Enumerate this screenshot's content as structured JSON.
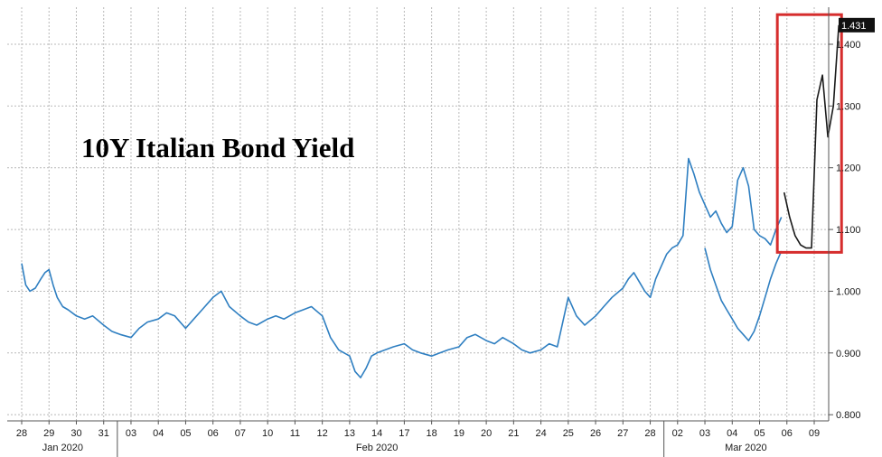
{
  "chart_data": {
    "type": "line",
    "title": "10Y Italian Bond Yield",
    "y_ticks": [
      "0.800",
      "0.900",
      "1.000",
      "1.100",
      "1.200",
      "1.300",
      "1.400"
    ],
    "ylim": [
      0.79,
      1.46
    ],
    "x_day_labels": [
      "28",
      "29",
      "30",
      "31",
      "03",
      "04",
      "05",
      "06",
      "07",
      "10",
      "11",
      "12",
      "13",
      "14",
      "17",
      "18",
      "19",
      "20",
      "21",
      "24",
      "25",
      "26",
      "27",
      "28",
      "02",
      "03",
      "04",
      "05",
      "06",
      "09"
    ],
    "month_labels": [
      {
        "label": "Jan 2020",
        "day_index": 1.5
      },
      {
        "label": "Feb 2020",
        "day_index": 13
      },
      {
        "label": "Mar 2020",
        "day_index": 26.5
      }
    ],
    "month_separators_after": [
      3,
      23
    ],
    "last_value": "1.431",
    "colors": {
      "series": "#2f7fc1",
      "highlight_series": "#1a1a1a",
      "highlight_box": "#d62d2d",
      "last_value_bg": "#111111",
      "grid": "#b9b9b9"
    },
    "highlight_box": {
      "day_start": 28.0,
      "day_end": 29.9,
      "y_top": 1.448,
      "y_bottom": 1.063
    },
    "series": [
      {
        "x": [
          0,
          0.15,
          0.3,
          0.5,
          0.7,
          0.85,
          1,
          1.15,
          1.3,
          1.5,
          1.7,
          2,
          2.3,
          2.6,
          3,
          3.3,
          3.6,
          4,
          4.3,
          4.6,
          5,
          5.3,
          5.6,
          6,
          6.3,
          6.6,
          7,
          7.3,
          7.6,
          8,
          8.3,
          8.6,
          9,
          9.3,
          9.6,
          10,
          10.3,
          10.6,
          11,
          11.3,
          11.6,
          12,
          12.2,
          12.4,
          12.6,
          12.8,
          13,
          13.3,
          13.6,
          14,
          14.3,
          14.6,
          15,
          15.3,
          15.6,
          16,
          16.3,
          16.6,
          17,
          17.3,
          17.6,
          18,
          18.3,
          18.6,
          19,
          19.3,
          19.6,
          20,
          20.3,
          20.6,
          21,
          21.3,
          21.6,
          22,
          22.2,
          22.4,
          22.6,
          22.8,
          23,
          23.2,
          23.4,
          23.6,
          23.8,
          24,
          24.2,
          24.4,
          24.6,
          24.8,
          25,
          25.2,
          25.4,
          25.6,
          25.8,
          26,
          26.2,
          26.4,
          26.6,
          26.8,
          27,
          27.2,
          27.4,
          27.6,
          27.8
        ],
        "y": [
          1.045,
          1.01,
          1.0,
          1.005,
          1.02,
          1.03,
          1.035,
          1.01,
          0.99,
          0.975,
          0.97,
          0.96,
          0.955,
          0.96,
          0.945,
          0.935,
          0.93,
          0.925,
          0.94,
          0.95,
          0.955,
          0.965,
          0.96,
          0.94,
          0.955,
          0.97,
          0.99,
          1.0,
          0.975,
          0.96,
          0.95,
          0.945,
          0.955,
          0.96,
          0.955,
          0.965,
          0.97,
          0.975,
          0.96,
          0.925,
          0.905,
          0.895,
          0.87,
          0.86,
          0.875,
          0.895,
          0.9,
          0.905,
          0.91,
          0.915,
          0.905,
          0.9,
          0.895,
          0.9,
          0.905,
          0.91,
          0.925,
          0.93,
          0.92,
          0.915,
          0.925,
          0.915,
          0.905,
          0.9,
          0.905,
          0.915,
          0.91,
          0.99,
          0.96,
          0.945,
          0.96,
          0.975,
          0.99,
          1.005,
          1.02,
          1.03,
          1.015,
          1.0,
          0.99,
          1.02,
          1.04,
          1.06,
          1.07,
          1.075,
          1.09,
          1.215,
          1.19,
          1.16,
          1.14,
          1.12,
          1.13,
          1.11,
          1.095,
          1.105,
          1.18,
          1.2,
          1.17,
          1.1,
          1.09,
          1.085,
          1.075,
          1.1,
          1.12
        ],
        "color_key": "series"
      },
      {
        "x": [
          25.0,
          25.2,
          25.4,
          25.6,
          25.8,
          26.0,
          26.2,
          26.4,
          26.6,
          26.8,
          27.0,
          27.2,
          27.4,
          27.6,
          27.8
        ],
        "y": [
          1.07,
          1.035,
          1.01,
          0.985,
          0.97,
          0.955,
          0.94,
          0.93,
          0.92,
          0.935,
          0.96,
          0.99,
          1.02,
          1.045,
          1.065
        ],
        "color_key": "series"
      },
      {
        "x": [
          27.9,
          28.1,
          28.3,
          28.5,
          28.7,
          28.9,
          29.1,
          29.3,
          29.5,
          29.7,
          29.9
        ],
        "y": [
          1.16,
          1.12,
          1.09,
          1.075,
          1.07,
          1.07,
          1.31,
          1.35,
          1.25,
          1.3,
          1.431
        ],
        "color_key": "highlight_series"
      }
    ]
  }
}
